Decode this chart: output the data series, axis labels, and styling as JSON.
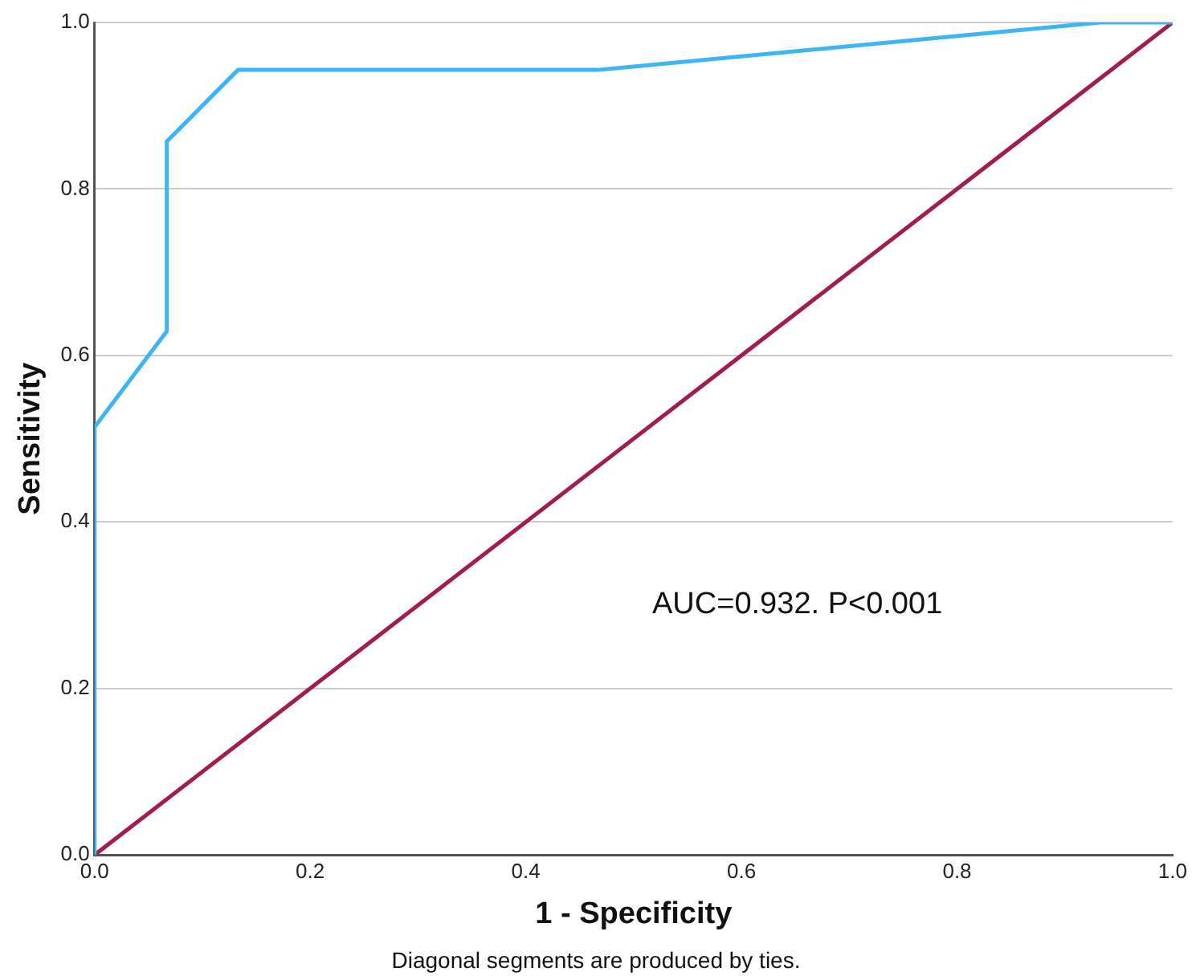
{
  "chart_data": {
    "type": "line",
    "xlabel": "1 - Specificity",
    "ylabel": "Sensitivity",
    "x": [
      0,
      0,
      0.067,
      0.067,
      0.133,
      0.467,
      0.933,
      1
    ],
    "series": [
      {
        "color": "#3db5f5",
        "values": [
          0,
          0.514,
          0.629,
          0.857,
          0.943,
          0.943,
          1,
          1
        ]
      },
      {
        "color": "#a01c52",
        "x": [
          0,
          1
        ],
        "values": [
          0,
          1
        ]
      }
    ],
    "xlim": [
      0,
      1
    ],
    "ylim": [
      0,
      1
    ],
    "xticks": [
      {
        "value": 0,
        "label": "0.0"
      },
      {
        "value": 0.2,
        "label": "0.2"
      },
      {
        "value": 0.4,
        "label": "0.4"
      },
      {
        "value": 0.6,
        "label": "0.6"
      },
      {
        "value": 0.8,
        "label": "0.8"
      },
      {
        "value": 1,
        "label": "1.0"
      }
    ],
    "yticks": [
      {
        "value": 0,
        "label": "0.0"
      },
      {
        "value": 0.2,
        "label": "0.2"
      },
      {
        "value": 0.4,
        "label": "0.4"
      },
      {
        "value": 0.6,
        "label": "0.6"
      },
      {
        "value": 0.8,
        "label": "0.8"
      },
      {
        "value": 1,
        "label": "1.0"
      }
    ],
    "grid": "y",
    "legend": false,
    "marker": "none",
    "line_style": "solid",
    "annotations": [
      "AUC=0.932. P<0.001",
      "Diagonal segments are produced by ties."
    ]
  }
}
